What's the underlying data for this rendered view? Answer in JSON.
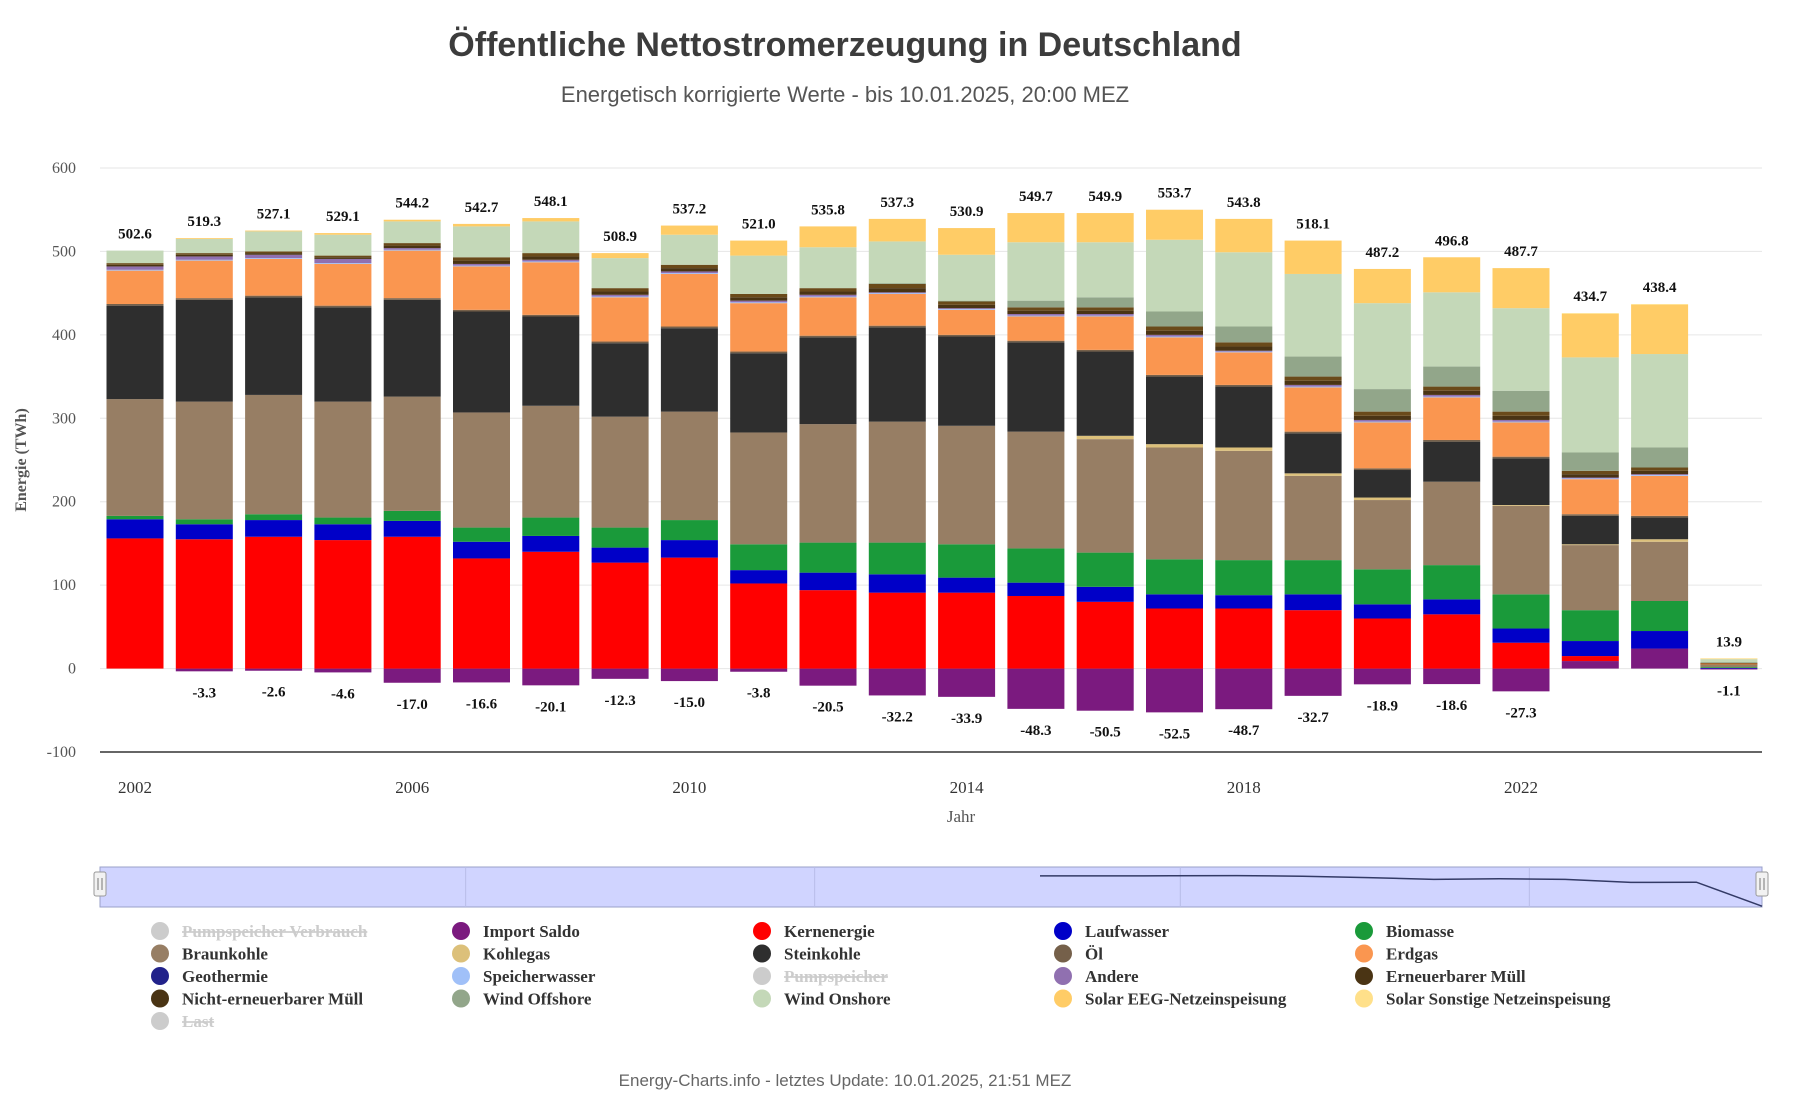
{
  "title": "Öffentliche Nettostromerzeugung in Deutschland",
  "subtitle": "Energetisch korrigierte Werte - bis 10.01.2025, 20:00 MEZ",
  "footer": "Energy-Charts.info - letztes Update: 10.01.2025, 21:51 MEZ",
  "chart_data": {
    "type": "bar",
    "stacked": true,
    "xlabel": "Jahr",
    "ylabel": "Energie (TWh)",
    "ylim": [
      -100,
      600
    ],
    "yticks": [
      -100,
      0,
      100,
      200,
      300,
      400,
      500,
      600
    ],
    "xtick_labels": [
      "2002",
      "2006",
      "2010",
      "2014",
      "2018",
      "2022"
    ],
    "grid": true,
    "categories": [
      "2002",
      "2003",
      "2004",
      "2005",
      "2006",
      "2007",
      "2008",
      "2009",
      "2010",
      "2011",
      "2012",
      "2013",
      "2014",
      "2015",
      "2016",
      "2017",
      "2018",
      "2019",
      "2020",
      "2021",
      "2022",
      "2023",
      "2024",
      "2025"
    ],
    "totals": [
      502.6,
      519.3,
      527.1,
      529.1,
      544.2,
      542.7,
      548.1,
      508.9,
      537.2,
      521.0,
      535.8,
      537.3,
      530.9,
      549.7,
      549.9,
      553.7,
      543.8,
      518.1,
      487.2,
      496.8,
      487.7,
      434.7,
      438.4,
      13.9
    ],
    "negatives": [
      null,
      -3.3,
      -2.6,
      -4.6,
      -17.0,
      -16.6,
      -20.1,
      -12.3,
      -15.0,
      -3.8,
      -20.5,
      -32.2,
      -33.9,
      -48.3,
      -50.5,
      -52.5,
      -48.7,
      -32.7,
      -18.9,
      -18.6,
      -27.3,
      null,
      null,
      -1.1
    ],
    "series": [
      {
        "name": "Import Saldo",
        "color": "#7b1a7f",
        "values": [
          0,
          -3.3,
          -2.6,
          -4.6,
          -17.0,
          -16.6,
          -20.1,
          -12.3,
          -15.0,
          -3.8,
          -20.5,
          -32.2,
          -33.9,
          -48.3,
          -50.5,
          -52.5,
          -48.7,
          -32.7,
          -18.9,
          -18.6,
          -27.3,
          9,
          24,
          -1.1
        ]
      },
      {
        "name": "Kernenergie",
        "color": "#ff0000",
        "values": [
          156,
          155,
          158,
          154,
          158,
          132,
          140,
          127,
          133,
          102,
          94,
          91,
          91,
          87,
          80,
          72,
          72,
          70,
          60,
          65,
          31,
          6,
          0,
          0
        ]
      },
      {
        "name": "Laufwasser",
        "color": "#0000c8",
        "values": [
          23,
          18,
          20,
          19,
          19,
          20,
          19,
          18,
          21,
          16,
          21,
          22,
          18,
          16,
          18,
          17,
          16,
          19,
          17,
          18,
          17,
          18,
          21,
          0.7
        ]
      },
      {
        "name": "Biomasse",
        "color": "#1a9a3a",
        "values": [
          4,
          6,
          7,
          8,
          12,
          17,
          22,
          24,
          24,
          31,
          36,
          38,
          40,
          41,
          41,
          42,
          42,
          41,
          42,
          41,
          41,
          37,
          36,
          1
        ]
      },
      {
        "name": "Braunkohle",
        "color": "#977e64",
        "values": [
          140,
          141,
          143,
          139,
          137,
          138,
          134,
          133,
          130,
          134,
          142,
          145,
          142,
          140,
          136,
          134,
          131,
          101,
          83,
          100,
          106,
          78,
          71,
          2
        ]
      },
      {
        "name": "Kohlegas",
        "color": "#dcc07a",
        "values": [
          0,
          0,
          0,
          0,
          0,
          0,
          0,
          0,
          0,
          0,
          0,
          0,
          0,
          0,
          4,
          4,
          4,
          3,
          3,
          0,
          1,
          1,
          3,
          0.1
        ]
      },
      {
        "name": "Steinkohle",
        "color": "#2e2e2e",
        "values": [
          112,
          122,
          117,
          113,
          116,
          121,
          107,
          88,
          100,
          95,
          104,
          113,
          107,
          107,
          101,
          81,
          73,
          48,
          33,
          48,
          56,
          34,
          26,
          1
        ]
      },
      {
        "name": "Öl",
        "color": "#75604a",
        "values": [
          2,
          2,
          2,
          2,
          2,
          2,
          2,
          2,
          2,
          2,
          2,
          2,
          2,
          2,
          2,
          2,
          2,
          2,
          2,
          2,
          2,
          2,
          2,
          0.1
        ]
      },
      {
        "name": "Erdgas",
        "color": "#fa9650",
        "values": [
          40,
          45,
          44,
          50,
          57,
          52,
          63,
          53,
          63,
          58,
          46,
          38,
          30,
          29,
          40,
          45,
          39,
          53,
          55,
          51,
          41,
          42,
          48,
          1.5
        ]
      },
      {
        "name": "Speicherwasser",
        "color": "#a0c0f8",
        "values": [
          1,
          1,
          1,
          1,
          1,
          1,
          1,
          1,
          1,
          1,
          1,
          1,
          1,
          1,
          1,
          1,
          1,
          1,
          1,
          1,
          1,
          1,
          1,
          0
        ]
      },
      {
        "name": "Andere",
        "color": "#9070b0",
        "values": [
          4,
          4,
          4,
          5,
          2,
          2,
          2,
          2,
          2,
          2,
          2,
          1,
          1,
          2,
          2,
          2,
          1,
          2,
          2,
          2,
          2,
          1,
          1,
          0
        ]
      },
      {
        "name": "Erneuerbarer Müll",
        "color": "#4a3414",
        "values": [
          2,
          2,
          2,
          2,
          3,
          4,
          4,
          4,
          4,
          4,
          4,
          5,
          4,
          4,
          4,
          5,
          5,
          5,
          5,
          5,
          5,
          4,
          4,
          0.2
        ]
      },
      {
        "name": "Nicht-erneuerbarer Müll",
        "color": "#6a4a1a",
        "values": [
          2,
          2,
          2,
          2,
          3,
          4,
          4,
          4,
          4,
          4,
          4,
          5,
          4,
          4,
          4,
          5,
          5,
          5,
          5,
          5,
          5,
          4,
          4,
          0.2
        ]
      },
      {
        "name": "Wind Offshore",
        "color": "#92a68a",
        "values": [
          0,
          0,
          0,
          0,
          0,
          0,
          0,
          0,
          0,
          0,
          0,
          1,
          1,
          8,
          12,
          18,
          19,
          24,
          27,
          24,
          25,
          22,
          24,
          1
        ]
      },
      {
        "name": "Wind Onshore",
        "color": "#c4d8b8",
        "values": [
          15,
          17,
          24,
          25,
          26,
          37,
          38,
          36,
          36,
          46,
          49,
          50,
          55,
          70,
          66,
          86,
          89,
          99,
          103,
          89,
          99,
          114,
          112,
          3.5
        ]
      },
      {
        "name": "Solar EEG-Netzeinspeisung",
        "color": "#ffcc66",
        "values": [
          0,
          1,
          1,
          2,
          2,
          3,
          4,
          6,
          11,
          18,
          25,
          27,
          32,
          35,
          35,
          36,
          40,
          40,
          41,
          42,
          48,
          52,
          59,
          0.8
        ]
      },
      {
        "name": "Solar Sonstige Netzeinspeisung",
        "color": "#ffe08a",
        "values": [
          0,
          0,
          0,
          0,
          0,
          0,
          0,
          0,
          0,
          0,
          0,
          0,
          0,
          0,
          0,
          0,
          0,
          0,
          0,
          0,
          0,
          1,
          1,
          0.1
        ]
      }
    ],
    "navigator": {
      "values": [
        548.1,
        549.7,
        549.9,
        553.7,
        543.8,
        518.1,
        487.2,
        496.8,
        487.7,
        434.7,
        438.4,
        13.9
      ]
    },
    "legend": [
      {
        "label": "Pumpspeicher Verbrauch",
        "color": "#cccccc",
        "hidden": true
      },
      {
        "label": "Import Saldo",
        "color": "#7b1a7f",
        "hidden": false
      },
      {
        "label": "Kernenergie",
        "color": "#ff0000",
        "hidden": false
      },
      {
        "label": "Laufwasser",
        "color": "#0000c8",
        "hidden": false
      },
      {
        "label": "Biomasse",
        "color": "#1a9a3a",
        "hidden": false
      },
      {
        "label": "Braunkohle",
        "color": "#977e64",
        "hidden": false
      },
      {
        "label": "Kohlegas",
        "color": "#dcc07a",
        "hidden": false
      },
      {
        "label": "Steinkohle",
        "color": "#2e2e2e",
        "hidden": false
      },
      {
        "label": "Öl",
        "color": "#75604a",
        "hidden": false
      },
      {
        "label": "Erdgas",
        "color": "#fa9650",
        "hidden": false
      },
      {
        "label": "Geothermie",
        "color": "#22228a",
        "hidden": false
      },
      {
        "label": "Speicherwasser",
        "color": "#a0c0f8",
        "hidden": false
      },
      {
        "label": "Pumpspeicher",
        "color": "#cccccc",
        "hidden": true
      },
      {
        "label": "Andere",
        "color": "#9070b0",
        "hidden": false
      },
      {
        "label": "Erneuerbarer Müll",
        "color": "#4a3414",
        "hidden": false
      },
      {
        "label": "Nicht-erneuerbarer Müll",
        "color": "#4a3414",
        "hidden": false
      },
      {
        "label": "Wind Offshore",
        "color": "#92a68a",
        "hidden": false
      },
      {
        "label": "Wind Onshore",
        "color": "#c4d8b8",
        "hidden": false
      },
      {
        "label": "Solar EEG-Netzeinspeisung",
        "color": "#ffcc66",
        "hidden": false
      },
      {
        "label": "Solar Sonstige Netzeinspeisung",
        "color": "#ffe08a",
        "hidden": false
      },
      {
        "label": "Last",
        "color": "#cccccc",
        "hidden": true
      }
    ]
  }
}
